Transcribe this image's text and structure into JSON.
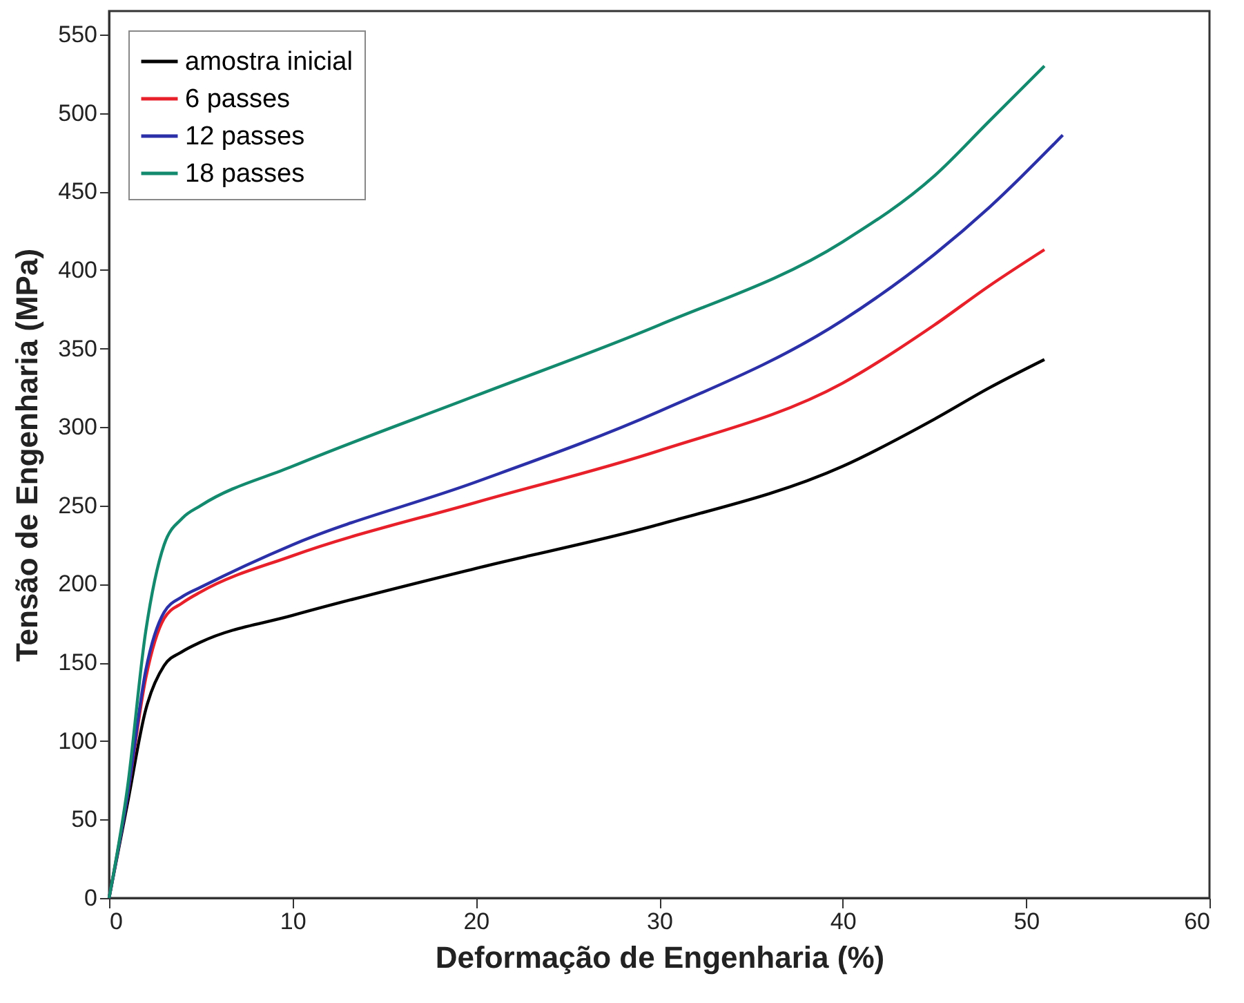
{
  "chart_data": {
    "type": "line",
    "xlabel": "Deformação de Engenharia (%)",
    "ylabel": "Tensão de Engenharia (MPa)",
    "xlim": [
      0,
      60
    ],
    "xticks": [
      0,
      10,
      20,
      30,
      40,
      50,
      60
    ],
    "ylim": [
      0,
      565
    ],
    "yticks": [
      0,
      50,
      100,
      150,
      200,
      250,
      300,
      350,
      400,
      450,
      500,
      550
    ],
    "grid": false,
    "legend": "top left",
    "marker": "none",
    "line_style": "solid",
    "series": [
      {
        "name": "amostra inicial",
        "color": "#000000",
        "x": [
          0,
          1,
          2,
          3,
          4,
          5,
          10,
          20,
          30,
          40,
          45,
          48,
          51
        ],
        "values": [
          0,
          60,
          120,
          148,
          157,
          163,
          180,
          210,
          238,
          275,
          305,
          325,
          343
        ]
      },
      {
        "name": "6 passes",
        "color": "#e8202a",
        "x": [
          0,
          1,
          2,
          3,
          4,
          5,
          10,
          20,
          30,
          40,
          45,
          48,
          51
        ],
        "values": [
          0,
          65,
          140,
          178,
          188,
          195,
          218,
          252,
          285,
          328,
          365,
          390,
          413
        ]
      },
      {
        "name": "12 passes",
        "color": "#2b2fa8",
        "x": [
          0,
          1,
          2,
          3,
          4,
          5,
          10,
          20,
          30,
          40,
          45,
          48,
          52
        ],
        "values": [
          0,
          65,
          145,
          182,
          192,
          198,
          225,
          265,
          310,
          368,
          410,
          440,
          486
        ]
      },
      {
        "name": "18 passes",
        "color": "#138a6e",
        "x": [
          0,
          1,
          2,
          3,
          4,
          5,
          10,
          20,
          30,
          40,
          45,
          48,
          51
        ],
        "values": [
          0,
          70,
          170,
          225,
          242,
          250,
          275,
          320,
          365,
          418,
          460,
          495,
          530
        ]
      }
    ]
  }
}
